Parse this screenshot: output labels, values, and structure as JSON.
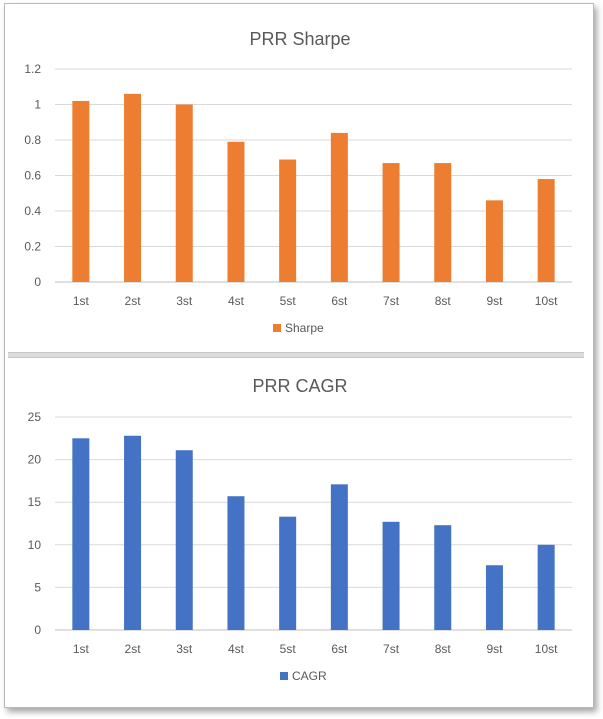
{
  "chart_data": [
    {
      "type": "bar",
      "title": "PRR Sharpe",
      "categories": [
        "1st",
        "2st",
        "3st",
        "4st",
        "5st",
        "6st",
        "7st",
        "8st",
        "9st",
        "10st"
      ],
      "series": [
        {
          "name": "Sharpe",
          "values": [
            1.02,
            1.06,
            1.0,
            0.79,
            0.69,
            0.84,
            0.67,
            0.67,
            0.46,
            0.58
          ]
        }
      ],
      "yticks": [
        "0",
        "0.2",
        "0.4",
        "0.6",
        "0.8",
        "1",
        "1.2"
      ],
      "ylim": [
        0,
        1.2
      ],
      "grid": true,
      "legend": "bottom",
      "color": "#ED7D31"
    },
    {
      "type": "bar",
      "title": "PRR CAGR",
      "categories": [
        "1st",
        "2st",
        "3st",
        "4st",
        "5st",
        "6st",
        "7st",
        "8st",
        "9st",
        "10st"
      ],
      "series": [
        {
          "name": "CAGR",
          "values": [
            22.5,
            22.8,
            21.1,
            15.7,
            13.3,
            17.1,
            12.7,
            12.3,
            7.6,
            10.0
          ]
        }
      ],
      "yticks": [
        "0",
        "5",
        "10",
        "15",
        "20",
        "25"
      ],
      "ylim": [
        0,
        25
      ],
      "grid": true,
      "legend": "bottom",
      "color": "#4472C4"
    }
  ]
}
